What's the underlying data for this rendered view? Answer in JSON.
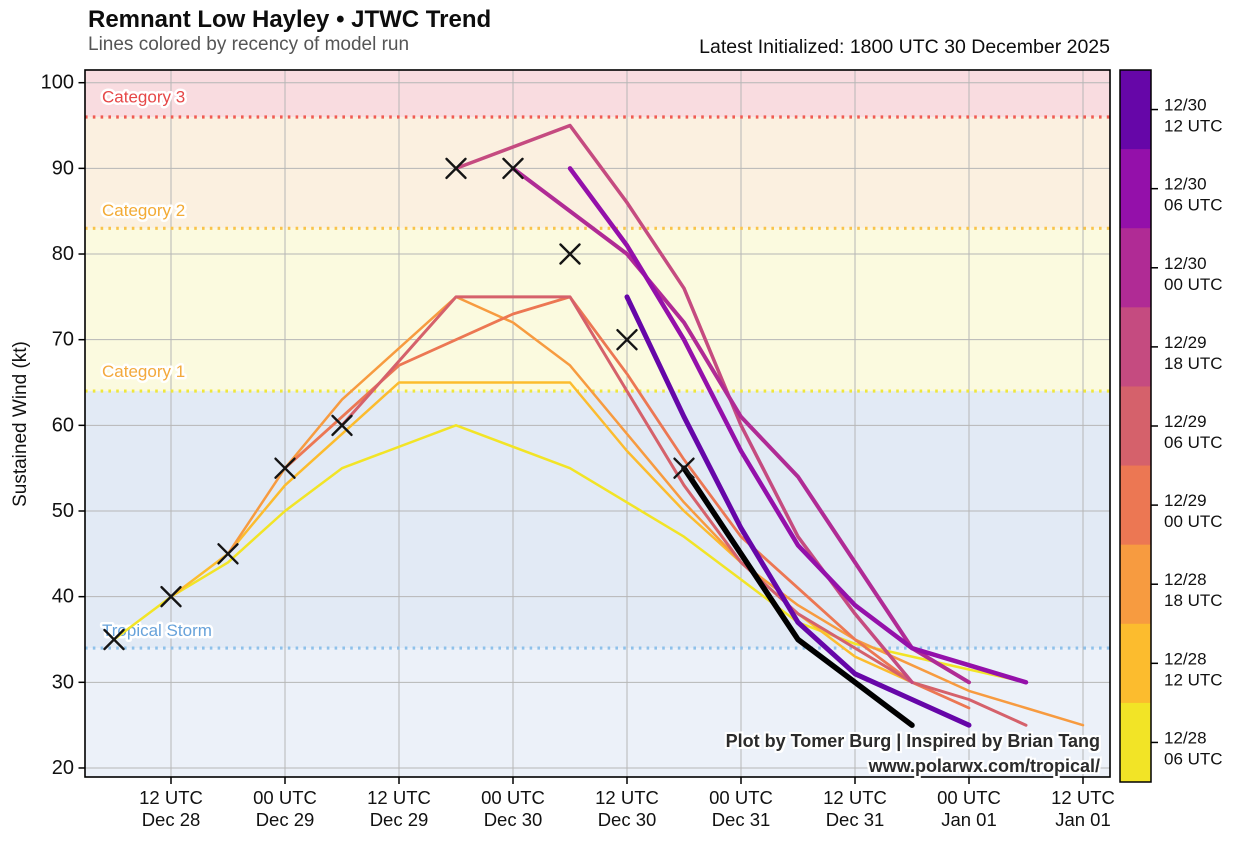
{
  "header": {
    "title": "Remnant Low Hayley • JTWC Trend",
    "subtitle": "Lines colored by recency of model run",
    "latest_init": "Latest Initialized: 1800 UTC 30 December 2025"
  },
  "attribution": {
    "line1": "Plot by Tomer Burg | Inspired by Brian Tang",
    "line2": "www.polarwx.com/tropical/"
  },
  "chart_data": {
    "type": "line",
    "title": "Remnant Low Hayley • JTWC Trend",
    "x_unit": "hours since 00 UTC 28 December 2025",
    "axes": {
      "ylabel": "Sustained Wind (kt)",
      "xlim_hours": [
        3,
        110.8
      ],
      "ylim": [
        19,
        101.5
      ],
      "y_ticks": [
        20,
        30,
        40,
        50,
        60,
        70,
        80,
        90,
        100
      ],
      "x_ticks": [
        {
          "t": 12,
          "time": "12 UTC",
          "date": "Dec 28"
        },
        {
          "t": 24,
          "time": "00 UTC",
          "date": "Dec 29"
        },
        {
          "t": 36,
          "time": "12 UTC",
          "date": "Dec 29"
        },
        {
          "t": 48,
          "time": "00 UTC",
          "date": "Dec 30"
        },
        {
          "t": 60,
          "time": "12 UTC",
          "date": "Dec 30"
        },
        {
          "t": 72,
          "time": "00 UTC",
          "date": "Dec 31"
        },
        {
          "t": 84,
          "time": "12 UTC",
          "date": "Dec 31"
        },
        {
          "t": 96,
          "time": "00 UTC",
          "date": "Jan 01"
        },
        {
          "t": 108,
          "time": "12 UTC",
          "date": "Jan 01"
        }
      ],
      "grid": true,
      "grid_color": "#b6b6b6"
    },
    "categories": [
      {
        "label": "Category 3",
        "range_kt": [
          96,
          101.5
        ],
        "band_color": "#f9dce0",
        "label_color": "#e64747",
        "label_kt": 98.3,
        "threshold_kt": 96,
        "threshold_color": "#f05b52"
      },
      {
        "label": "Category 2",
        "range_kt": [
          83,
          96
        ],
        "band_color": "#fbf0e0",
        "label_color": "#f3ab35",
        "label_kt": 85.0,
        "threshold_kt": 83,
        "threshold_color": "#f9c44c"
      },
      {
        "label": "Category 1",
        "range_kt": [
          64,
          83
        ],
        "band_color": "#fbfadf",
        "label_color": "#f3a93d",
        "label_kt": 66.2,
        "threshold_kt": 64,
        "threshold_color": "#efe63d"
      },
      {
        "label": "Tropical Storm",
        "range_kt": [
          34,
          64
        ],
        "band_color": "#e2eaf5",
        "label_color": "#67a2da",
        "label_kt": 36.0,
        "threshold_kt": 34,
        "threshold_color": "#8fc1ea"
      },
      {
        "label": "",
        "range_kt": [
          19,
          34
        ],
        "band_color": "#ecf1f9",
        "label_color": "",
        "label_kt": null,
        "threshold_kt": null,
        "threshold_color": ""
      }
    ],
    "series": [
      {
        "name": "12/28 06 UTC",
        "color": "#f2e426",
        "width": 2.5,
        "points": [
          [
            6,
            35
          ],
          [
            12,
            40
          ],
          [
            18,
            44
          ],
          [
            24,
            50
          ],
          [
            30,
            55
          ],
          [
            42,
            60
          ],
          [
            54,
            55
          ],
          [
            66,
            47
          ],
          [
            72,
            42
          ],
          [
            78,
            37
          ],
          [
            84,
            34.5
          ],
          [
            90,
            33
          ],
          [
            96,
            31.5
          ],
          [
            102,
            30
          ]
        ]
      },
      {
        "name": "12/28 12 UTC",
        "color": "#fcbc2e",
        "width": 2.5,
        "points": [
          [
            12,
            40
          ],
          [
            18,
            45
          ],
          [
            24,
            53
          ],
          [
            30,
            59
          ],
          [
            36,
            65
          ],
          [
            54,
            65
          ],
          [
            60,
            57
          ],
          [
            66,
            50
          ],
          [
            72,
            44
          ],
          [
            78,
            38
          ],
          [
            84,
            33
          ],
          [
            90,
            30
          ]
        ]
      },
      {
        "name": "12/28 18 UTC",
        "color": "#f79b40",
        "width": 2.5,
        "points": [
          [
            18,
            45
          ],
          [
            24,
            55
          ],
          [
            30,
            63
          ],
          [
            42,
            75
          ],
          [
            48,
            72
          ],
          [
            54,
            67
          ],
          [
            60,
            59
          ],
          [
            66,
            51
          ],
          [
            72,
            44
          ],
          [
            78,
            39
          ],
          [
            84,
            35
          ],
          [
            90,
            32
          ],
          [
            96,
            29
          ],
          [
            102,
            27
          ],
          [
            108,
            25
          ]
        ]
      },
      {
        "name": "12/29 00 UTC",
        "color": "#ec7753",
        "width": 2.8,
        "points": [
          [
            24,
            55
          ],
          [
            30,
            61
          ],
          [
            36,
            67
          ],
          [
            48,
            73
          ],
          [
            54,
            75
          ],
          [
            60,
            66
          ],
          [
            66,
            56
          ],
          [
            72,
            47
          ],
          [
            78,
            41
          ],
          [
            84,
            35
          ],
          [
            90,
            30
          ],
          [
            96,
            27
          ]
        ]
      },
      {
        "name": "12/29 06 UTC",
        "color": "#d5616b",
        "width": 3,
        "points": [
          [
            30,
            60
          ],
          [
            42,
            75
          ],
          [
            54,
            75
          ],
          [
            60,
            64
          ],
          [
            66,
            53
          ],
          [
            72,
            44
          ],
          [
            78,
            38
          ],
          [
            84,
            34
          ],
          [
            90,
            30
          ],
          [
            96,
            28
          ],
          [
            102,
            25
          ]
        ]
      },
      {
        "name": "12/29 18 UTC",
        "color": "#c54b80",
        "width": 3.5,
        "points": [
          [
            42,
            90
          ],
          [
            54,
            95
          ],
          [
            60,
            86
          ],
          [
            66,
            76
          ],
          [
            72,
            60
          ],
          [
            78,
            47
          ],
          [
            84,
            38
          ],
          [
            90,
            30
          ]
        ]
      },
      {
        "name": "12/30 00 UTC",
        "color": "#b02b95",
        "width": 4,
        "points": [
          [
            48,
            90
          ],
          [
            60,
            80
          ],
          [
            66,
            72
          ],
          [
            72,
            61
          ],
          [
            78,
            54
          ],
          [
            84,
            44
          ],
          [
            90,
            34
          ],
          [
            96,
            30
          ]
        ]
      },
      {
        "name": "12/30 06 UTC",
        "color": "#9410aa",
        "width": 4.5,
        "points": [
          [
            54,
            90
          ],
          [
            60,
            81
          ],
          [
            66,
            70
          ],
          [
            72,
            57
          ],
          [
            78,
            46
          ],
          [
            84,
            39
          ],
          [
            90,
            34
          ],
          [
            96,
            32
          ],
          [
            102,
            30
          ]
        ]
      },
      {
        "name": "12/30 12 UTC",
        "color": "#6606a8",
        "width": 5,
        "points": [
          [
            60,
            75
          ],
          [
            66,
            61
          ],
          [
            72,
            48
          ],
          [
            78,
            37
          ],
          [
            84,
            31
          ],
          [
            90,
            28
          ],
          [
            96,
            25
          ]
        ]
      }
    ],
    "latest_forecast": {
      "name": "Latest JTWC (1800 UTC 30 Dec)",
      "color": "#000000",
      "width": 5.5,
      "points": [
        [
          66,
          55
        ],
        [
          72,
          45
        ],
        [
          78,
          35
        ],
        [
          84,
          30
        ],
        [
          90,
          25
        ]
      ]
    },
    "observed_markers": {
      "symbol": "x",
      "color": "#141414",
      "points": [
        [
          6,
          35
        ],
        [
          12,
          40
        ],
        [
          18,
          45
        ],
        [
          24,
          55
        ],
        [
          30,
          60
        ],
        [
          42,
          90
        ],
        [
          48,
          90
        ],
        [
          54,
          80
        ],
        [
          60,
          70
        ],
        [
          66,
          55
        ]
      ]
    }
  },
  "colorbar": {
    "segments": [
      {
        "date": "12/30",
        "time": "12 UTC",
        "color": "#6606a8"
      },
      {
        "date": "12/30",
        "time": "06 UTC",
        "color": "#9410aa"
      },
      {
        "date": "12/30",
        "time": "00 UTC",
        "color": "#b02b95"
      },
      {
        "date": "12/29",
        "time": "18 UTC",
        "color": "#c54b80"
      },
      {
        "date": "12/29",
        "time": "06 UTC",
        "color": "#d5616b"
      },
      {
        "date": "12/29",
        "time": "00 UTC",
        "color": "#ec7753"
      },
      {
        "date": "12/28",
        "time": "18 UTC",
        "color": "#f79b40"
      },
      {
        "date": "12/28",
        "time": "12 UTC",
        "color": "#fcbc2e"
      },
      {
        "date": "12/28",
        "time": "06 UTC",
        "color": "#f2e426"
      }
    ]
  }
}
